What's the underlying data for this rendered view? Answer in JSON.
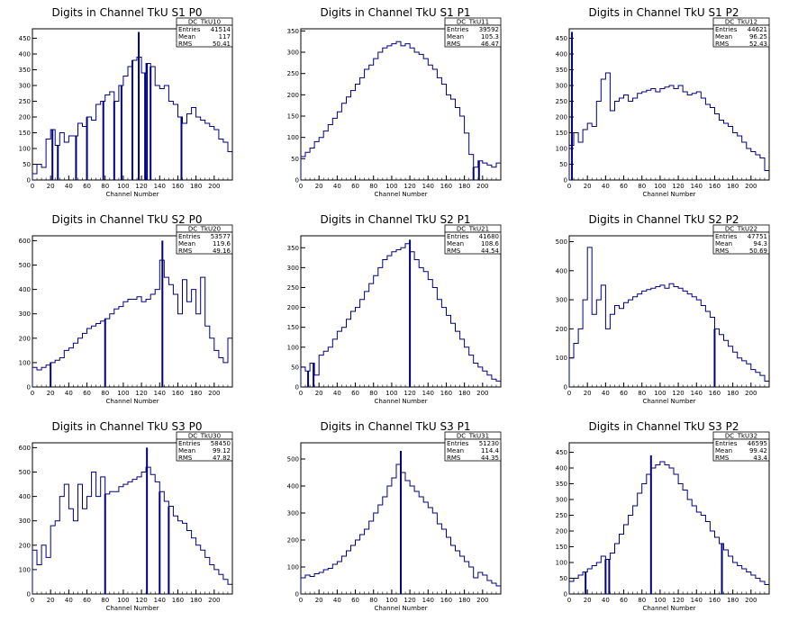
{
  "figure": {
    "background": "#ffffff",
    "line_color": "#000080"
  },
  "chart_data": [
    {
      "type": "histogram",
      "title": "Digits in Channel TkU S1 P0",
      "xlabel": "Channel Number",
      "ylabel": "",
      "xlim": [
        0,
        220
      ],
      "ylim": [
        0,
        480
      ],
      "xticks": [
        0,
        20,
        40,
        60,
        80,
        100,
        120,
        140,
        160,
        180,
        200
      ],
      "yticks": [
        0,
        50,
        100,
        150,
        200,
        250,
        300,
        350,
        400,
        450
      ],
      "stats": {
        "name": "DC_TkU10",
        "entries": "41514",
        "mean": "117",
        "rms": "50.41"
      },
      "x": [
        0,
        5,
        10,
        15,
        20,
        25,
        30,
        35,
        40,
        45,
        50,
        55,
        60,
        65,
        70,
        75,
        80,
        85,
        90,
        95,
        100,
        105,
        110,
        115,
        120,
        125,
        130,
        135,
        140,
        145,
        150,
        155,
        160,
        165,
        170,
        175,
        180,
        185,
        190,
        195,
        200,
        205,
        210,
        215
      ],
      "values": [
        20,
        50,
        40,
        130,
        160,
        110,
        150,
        120,
        140,
        140,
        180,
        170,
        200,
        190,
        240,
        250,
        270,
        280,
        250,
        300,
        330,
        360,
        380,
        390,
        340,
        370,
        360,
        300,
        290,
        300,
        250,
        240,
        200,
        180,
        210,
        230,
        200,
        190,
        180,
        170,
        160,
        130,
        120,
        90
      ],
      "spikes": [
        [
          22,
          0
        ],
        [
          28,
          0
        ],
        [
          48,
          0
        ],
        [
          60,
          0
        ],
        [
          78,
          0
        ],
        [
          90,
          0
        ],
        [
          98,
          0
        ],
        [
          110,
          0
        ],
        [
          117,
          470
        ],
        [
          124,
          0
        ],
        [
          126,
          0
        ],
        [
          130,
          0
        ],
        [
          164,
          0
        ]
      ]
    },
    {
      "type": "histogram",
      "title": "Digits in Channel TkU S1 P1",
      "xlabel": "Channel Number",
      "ylabel": "",
      "xlim": [
        0,
        220
      ],
      "ylim": [
        0,
        355
      ],
      "xticks": [
        0,
        20,
        40,
        60,
        80,
        100,
        120,
        140,
        160,
        180,
        200
      ],
      "yticks": [
        0,
        50,
        100,
        150,
        200,
        250,
        300,
        350
      ],
      "stats": {
        "name": "DC_TkU11",
        "entries": "39592",
        "mean": "105.3",
        "rms": "46.47"
      },
      "x": [
        0,
        5,
        10,
        15,
        20,
        25,
        30,
        35,
        40,
        45,
        50,
        55,
        60,
        65,
        70,
        75,
        80,
        85,
        90,
        95,
        100,
        105,
        110,
        115,
        120,
        125,
        130,
        135,
        140,
        145,
        150,
        155,
        160,
        165,
        170,
        175,
        180,
        185,
        190,
        195,
        200,
        205,
        210,
        215
      ],
      "values": [
        55,
        65,
        75,
        90,
        100,
        115,
        130,
        145,
        160,
        180,
        195,
        210,
        225,
        240,
        260,
        270,
        285,
        300,
        310,
        315,
        320,
        325,
        315,
        320,
        310,
        300,
        295,
        285,
        270,
        260,
        240,
        225,
        200,
        190,
        170,
        150,
        110,
        60,
        30,
        45,
        40,
        35,
        30,
        40
      ],
      "spikes": [
        [
          190,
          0
        ],
        [
          196,
          0
        ]
      ]
    },
    {
      "type": "histogram",
      "title": "Digits in Channel TkU S1 P2",
      "xlabel": "Channel Number",
      "ylabel": "",
      "xlim": [
        0,
        220
      ],
      "ylim": [
        0,
        480
      ],
      "xticks": [
        0,
        20,
        40,
        60,
        80,
        100,
        120,
        140,
        160,
        180,
        200
      ],
      "yticks": [
        0,
        50,
        100,
        150,
        200,
        250,
        300,
        350,
        400,
        450
      ],
      "stats": {
        "name": "DC_TkU12",
        "entries": "44621",
        "mean": "96.25",
        "rms": "52.43"
      },
      "x": [
        0,
        5,
        10,
        15,
        20,
        25,
        30,
        35,
        40,
        45,
        50,
        55,
        60,
        65,
        70,
        75,
        80,
        85,
        90,
        95,
        100,
        105,
        110,
        115,
        120,
        125,
        130,
        135,
        140,
        145,
        150,
        155,
        160,
        165,
        170,
        175,
        180,
        185,
        190,
        195,
        200,
        205,
        210,
        215
      ],
      "values": [
        110,
        150,
        120,
        160,
        180,
        170,
        250,
        320,
        340,
        220,
        250,
        260,
        270,
        250,
        260,
        275,
        280,
        285,
        290,
        280,
        290,
        295,
        300,
        290,
        300,
        280,
        270,
        275,
        280,
        260,
        240,
        230,
        210,
        190,
        180,
        170,
        150,
        140,
        120,
        100,
        90,
        80,
        70,
        30
      ],
      "spikes": [
        [
          3,
          470
        ]
      ]
    },
    {
      "type": "histogram",
      "title": "Digits in Channel TkU S2 P0",
      "xlabel": "Channel Number",
      "ylabel": "",
      "xlim": [
        0,
        220
      ],
      "ylim": [
        0,
        620
      ],
      "xticks": [
        0,
        20,
        40,
        60,
        80,
        100,
        120,
        140,
        160,
        180,
        200
      ],
      "yticks": [
        0,
        100,
        200,
        300,
        400,
        500,
        600
      ],
      "stats": {
        "name": "DC_TkU20",
        "entries": "53577",
        "mean": "119.6",
        "rms": "49.16"
      },
      "x": [
        0,
        5,
        10,
        15,
        20,
        25,
        30,
        35,
        40,
        45,
        50,
        55,
        60,
        65,
        70,
        75,
        80,
        85,
        90,
        95,
        100,
        105,
        110,
        115,
        120,
        125,
        130,
        135,
        140,
        145,
        150,
        155,
        160,
        165,
        170,
        175,
        180,
        185,
        190,
        195,
        200,
        205,
        210,
        215
      ],
      "values": [
        80,
        70,
        80,
        90,
        100,
        110,
        120,
        150,
        160,
        180,
        200,
        220,
        240,
        250,
        260,
        270,
        280,
        300,
        320,
        330,
        350,
        360,
        360,
        370,
        350,
        360,
        380,
        400,
        520,
        450,
        420,
        380,
        300,
        440,
        350,
        400,
        300,
        450,
        250,
        200,
        150,
        120,
        100,
        200
      ],
      "spikes": [
        [
          20,
          0
        ],
        [
          80,
          0
        ],
        [
          143,
          600
        ]
      ]
    },
    {
      "type": "histogram",
      "title": "Digits in Channel TkU S2 P1",
      "xlabel": "Channel Number",
      "ylabel": "",
      "xlim": [
        0,
        220
      ],
      "ylim": [
        0,
        380
      ],
      "xticks": [
        0,
        20,
        40,
        60,
        80,
        100,
        120,
        140,
        160,
        180,
        200
      ],
      "yticks": [
        0,
        50,
        100,
        150,
        200,
        250,
        300,
        350
      ],
      "stats": {
        "name": "DC_TkU21",
        "entries": "41680",
        "mean": "108.6",
        "rms": "44.54"
      },
      "x": [
        0,
        5,
        10,
        15,
        20,
        25,
        30,
        35,
        40,
        45,
        50,
        55,
        60,
        65,
        70,
        75,
        80,
        85,
        90,
        95,
        100,
        105,
        110,
        115,
        120,
        125,
        130,
        135,
        140,
        145,
        150,
        155,
        160,
        165,
        170,
        175,
        180,
        185,
        190,
        195,
        200,
        205,
        210,
        215
      ],
      "values": [
        50,
        40,
        60,
        30,
        80,
        90,
        100,
        120,
        140,
        150,
        170,
        190,
        200,
        220,
        240,
        260,
        280,
        300,
        320,
        330,
        340,
        345,
        350,
        360,
        340,
        320,
        300,
        290,
        270,
        250,
        220,
        200,
        180,
        160,
        140,
        120,
        100,
        80,
        60,
        50,
        40,
        30,
        20,
        15
      ],
      "spikes": [
        [
          8,
          0
        ],
        [
          14,
          0
        ],
        [
          120,
          370
        ]
      ]
    },
    {
      "type": "histogram",
      "title": "Digits in Channel TkU S2 P2",
      "xlabel": "Channel Number",
      "ylabel": "",
      "xlim": [
        0,
        220
      ],
      "ylim": [
        0,
        520
      ],
      "xticks": [
        0,
        20,
        40,
        60,
        80,
        100,
        120,
        140,
        160,
        180,
        200
      ],
      "yticks": [
        0,
        100,
        200,
        300,
        400,
        500
      ],
      "stats": {
        "name": "DC_TkU22",
        "entries": "47751",
        "mean": "94.3",
        "rms": "50.69"
      },
      "x": [
        0,
        5,
        10,
        15,
        20,
        25,
        30,
        35,
        40,
        45,
        50,
        55,
        60,
        65,
        70,
        75,
        80,
        85,
        90,
        95,
        100,
        105,
        110,
        115,
        120,
        125,
        130,
        135,
        140,
        145,
        150,
        155,
        160,
        165,
        170,
        175,
        180,
        185,
        190,
        195,
        200,
        205,
        210,
        215
      ],
      "values": [
        100,
        150,
        200,
        300,
        480,
        250,
        300,
        350,
        200,
        250,
        280,
        270,
        290,
        300,
        310,
        320,
        330,
        335,
        340,
        345,
        350,
        340,
        355,
        345,
        340,
        330,
        320,
        310,
        300,
        280,
        260,
        240,
        200,
        180,
        160,
        140,
        120,
        100,
        90,
        80,
        60,
        50,
        40,
        20
      ],
      "spikes": [
        [
          160,
          0
        ]
      ]
    },
    {
      "type": "histogram",
      "title": "Digits in Channel TkU S3 P0",
      "xlabel": "Channel Number",
      "ylabel": "",
      "xlim": [
        0,
        220
      ],
      "ylim": [
        0,
        620
      ],
      "xticks": [
        0,
        20,
        40,
        60,
        80,
        100,
        120,
        140,
        160,
        180,
        200
      ],
      "yticks": [
        0,
        100,
        200,
        300,
        400,
        500,
        600
      ],
      "stats": {
        "name": "DC_TkU30",
        "entries": "58450",
        "mean": "99.12",
        "rms": "47.82"
      },
      "x": [
        0,
        5,
        10,
        15,
        20,
        25,
        30,
        35,
        40,
        45,
        50,
        55,
        60,
        65,
        70,
        75,
        80,
        85,
        90,
        95,
        100,
        105,
        110,
        115,
        120,
        125,
        130,
        135,
        140,
        145,
        150,
        155,
        160,
        165,
        170,
        175,
        180,
        185,
        190,
        195,
        200,
        205,
        210,
        215
      ],
      "values": [
        180,
        120,
        200,
        150,
        280,
        300,
        400,
        450,
        350,
        300,
        450,
        350,
        400,
        500,
        400,
        480,
        410,
        420,
        420,
        440,
        450,
        460,
        470,
        480,
        500,
        520,
        490,
        460,
        420,
        380,
        360,
        320,
        300,
        290,
        260,
        230,
        200,
        180,
        150,
        120,
        100,
        80,
        60,
        40
      ],
      "spikes": [
        [
          80,
          0
        ],
        [
          126,
          600
        ],
        [
          140,
          0
        ],
        [
          150,
          0
        ]
      ]
    },
    {
      "type": "histogram",
      "title": "Digits in Channel TkU S3 P1",
      "xlabel": "Channel Number",
      "ylabel": "",
      "xlim": [
        0,
        220
      ],
      "ylim": [
        0,
        560
      ],
      "xticks": [
        0,
        20,
        40,
        60,
        80,
        100,
        120,
        140,
        160,
        180,
        200
      ],
      "yticks": [
        0,
        100,
        200,
        300,
        400,
        500
      ],
      "stats": {
        "name": "DC_TkU31",
        "entries": "51230",
        "mean": "114.4",
        "rms": "44.35"
      },
      "x": [
        0,
        5,
        10,
        15,
        20,
        25,
        30,
        35,
        40,
        45,
        50,
        55,
        60,
        65,
        70,
        75,
        80,
        85,
        90,
        95,
        100,
        105,
        110,
        115,
        120,
        125,
        130,
        135,
        140,
        145,
        150,
        155,
        160,
        165,
        170,
        175,
        180,
        185,
        190,
        195,
        200,
        205,
        210,
        215
      ],
      "values": [
        60,
        70,
        65,
        75,
        80,
        90,
        95,
        110,
        120,
        140,
        160,
        180,
        200,
        220,
        240,
        270,
        300,
        330,
        360,
        400,
        430,
        480,
        450,
        420,
        400,
        380,
        360,
        340,
        320,
        300,
        260,
        240,
        210,
        180,
        160,
        140,
        120,
        100,
        60,
        80,
        70,
        50,
        40,
        30
      ],
      "spikes": [
        [
          110,
          530
        ]
      ]
    },
    {
      "type": "histogram",
      "title": "Digits in Channel TkU S3 P2",
      "xlabel": "Channel Number",
      "ylabel": "",
      "xlim": [
        0,
        220
      ],
      "ylim": [
        0,
        480
      ],
      "xticks": [
        0,
        20,
        40,
        60,
        80,
        100,
        120,
        140,
        160,
        180,
        200
      ],
      "yticks": [
        0,
        50,
        100,
        150,
        200,
        250,
        300,
        350,
        400,
        450
      ],
      "stats": {
        "name": "DC_TkU32",
        "entries": "46595",
        "mean": "99.42",
        "rms": "43.4"
      },
      "x": [
        0,
        5,
        10,
        15,
        20,
        25,
        30,
        35,
        40,
        45,
        50,
        55,
        60,
        65,
        70,
        75,
        80,
        85,
        90,
        95,
        100,
        105,
        110,
        115,
        120,
        125,
        130,
        135,
        140,
        145,
        150,
        155,
        160,
        165,
        170,
        175,
        180,
        185,
        190,
        195,
        200,
        205,
        210,
        215
      ],
      "values": [
        40,
        50,
        60,
        70,
        80,
        90,
        100,
        120,
        110,
        130,
        160,
        190,
        220,
        250,
        280,
        320,
        350,
        380,
        400,
        410,
        420,
        410,
        400,
        380,
        350,
        330,
        300,
        280,
        260,
        250,
        230,
        200,
        180,
        160,
        140,
        120,
        100,
        90,
        80,
        70,
        60,
        50,
        40,
        30
      ],
      "spikes": [
        [
          18,
          0
        ],
        [
          40,
          0
        ],
        [
          44,
          0
        ],
        [
          90,
          440
        ],
        [
          168,
          0
        ]
      ]
    }
  ],
  "stats_labels": {
    "entries": "Entries",
    "mean": "Mean",
    "rms": "RMS"
  }
}
